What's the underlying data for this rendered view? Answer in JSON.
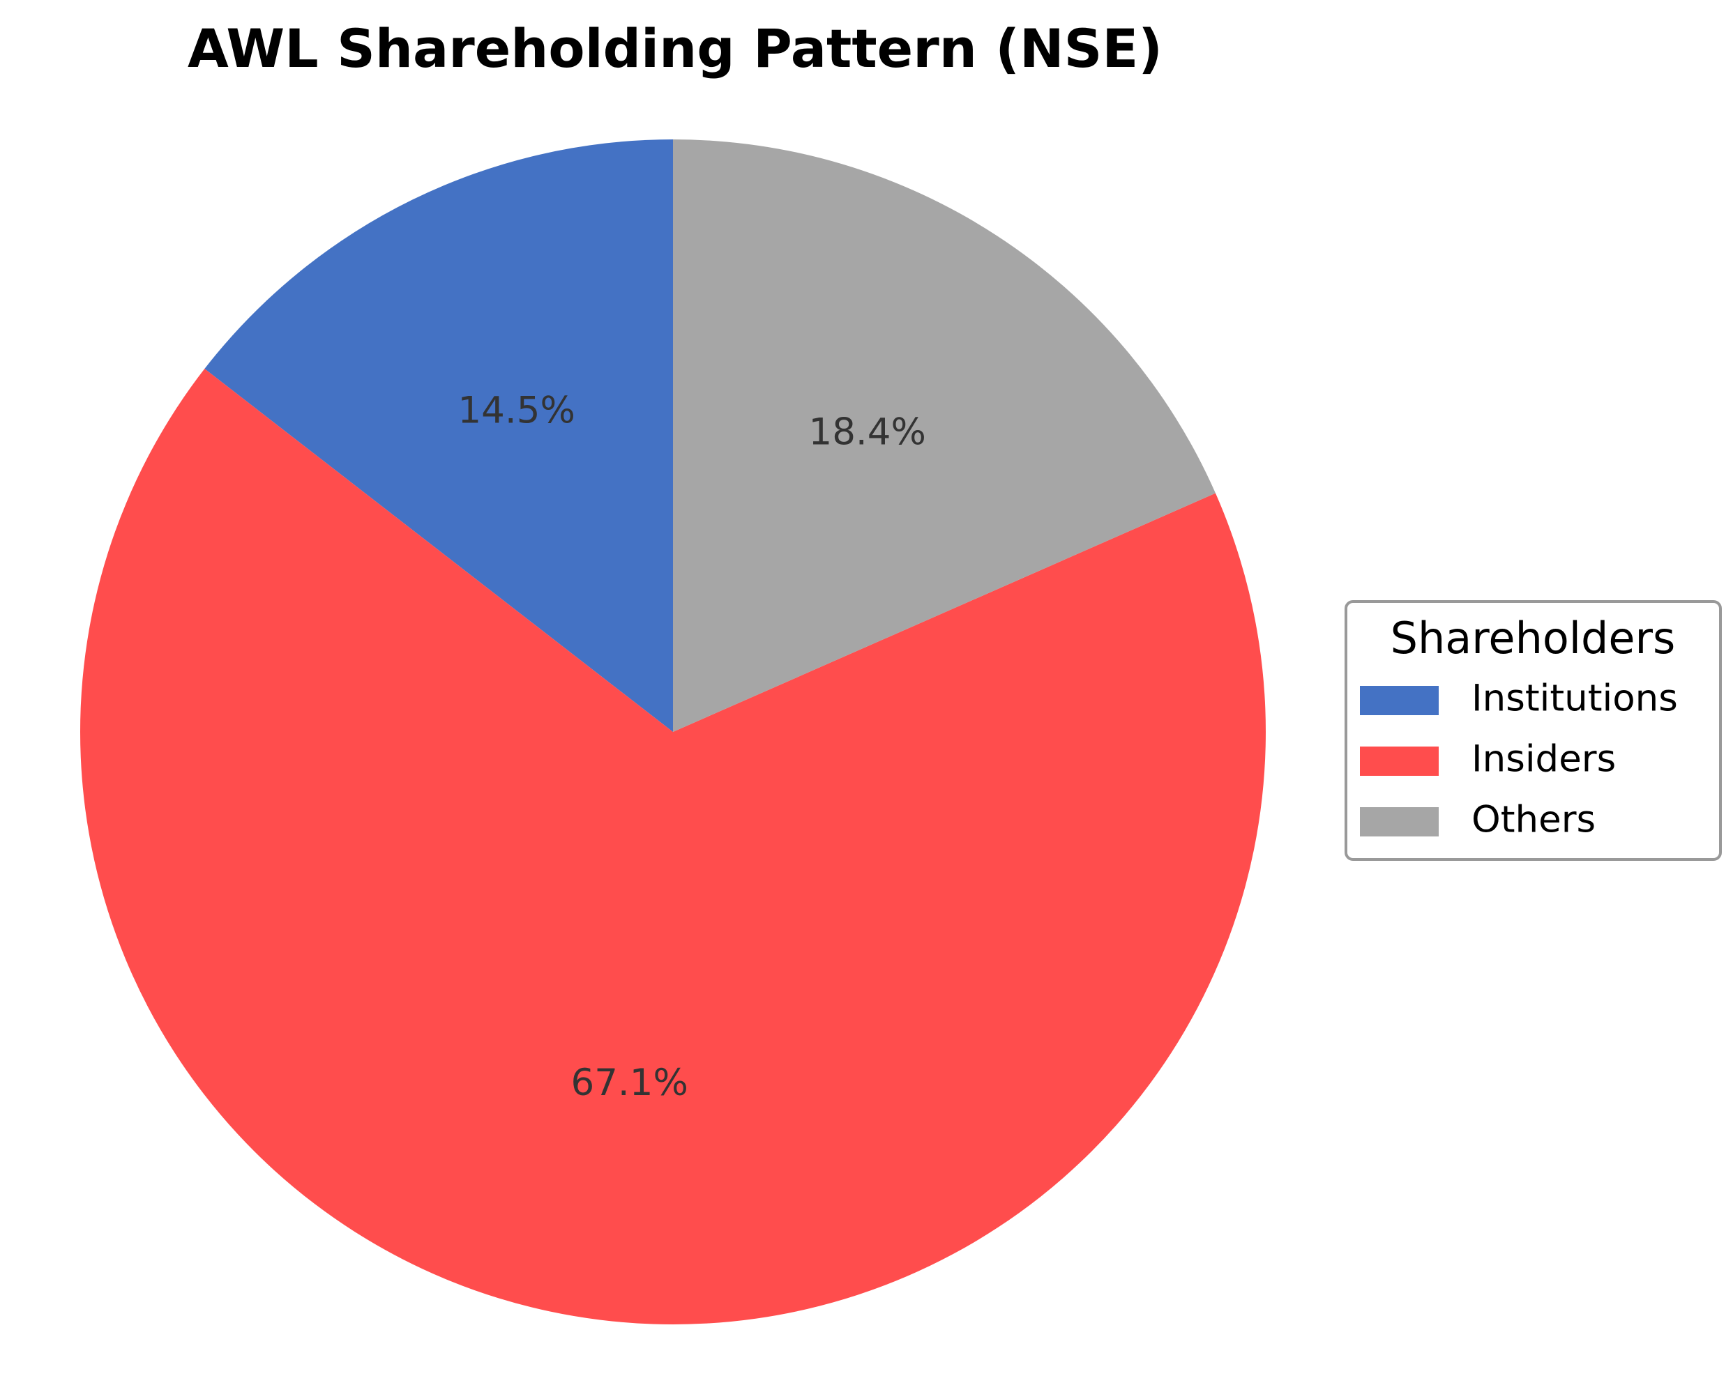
{
  "chart_data": {
    "type": "pie",
    "title": "AWL Shareholding Pattern (NSE)",
    "categories": [
      "Institutions",
      "Insiders",
      "Others"
    ],
    "values": [
      14.5,
      67.1,
      18.4
    ],
    "labels": [
      "14.5%",
      "67.1%",
      "18.4%"
    ],
    "colors": [
      "#4472C4",
      "#FF4D4D",
      "#A6A6A6"
    ],
    "start_angle_deg": 90,
    "direction": "counterclockwise",
    "legend": {
      "title": "Shareholders",
      "placement": "right",
      "entries": [
        "Institutions",
        "Insiders",
        "Others"
      ]
    }
  }
}
